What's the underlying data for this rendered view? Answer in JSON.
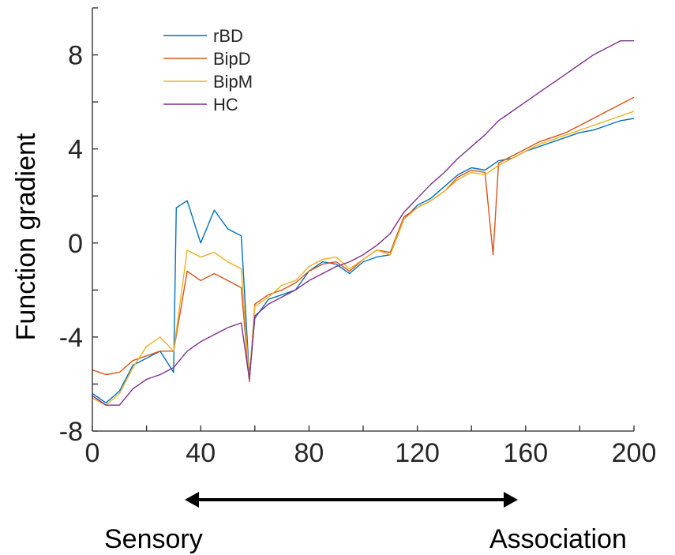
{
  "chart_data": {
    "type": "line",
    "xlabel": "",
    "ylabel": "Function gradient",
    "xlim": [
      0,
      200
    ],
    "ylim": [
      -8,
      10
    ],
    "xticks": [
      0,
      40,
      80,
      120,
      160,
      200
    ],
    "xtick_labels": [
      "0",
      "40",
      "80",
      "120",
      "160",
      "200"
    ],
    "yticks": [
      -8,
      -4,
      0,
      4,
      8
    ],
    "ytick_labels": [
      "-8",
      "-4",
      "0",
      "4",
      "8"
    ],
    "grid": false,
    "legend_position": "top-left",
    "annotation": {
      "arrow": "double-headed",
      "left_label": "Sensory",
      "right_label": "Association"
    },
    "series": [
      {
        "name": "rBD",
        "color": "#0072BD",
        "x": [
          0,
          5,
          10,
          15,
          20,
          25,
          30,
          31,
          35,
          40,
          45,
          50,
          55,
          58,
          60,
          65,
          70,
          75,
          80,
          85,
          90,
          95,
          100,
          105,
          110,
          115,
          120,
          125,
          130,
          135,
          140,
          145,
          150,
          155,
          160,
          165,
          170,
          175,
          180,
          185,
          190,
          195,
          200
        ],
        "y": [
          -6.4,
          -6.8,
          -6.3,
          -5.2,
          -4.9,
          -4.6,
          -5.5,
          1.5,
          1.8,
          0.0,
          1.4,
          0.6,
          0.3,
          -5.7,
          -3.2,
          -2.4,
          -2.2,
          -2.0,
          -1.2,
          -0.8,
          -0.9,
          -1.3,
          -0.8,
          -0.6,
          -0.5,
          1.0,
          1.6,
          1.9,
          2.4,
          2.9,
          3.2,
          3.1,
          3.5,
          3.6,
          3.9,
          4.1,
          4.3,
          4.5,
          4.7,
          4.8,
          5.0,
          5.2,
          5.3
        ]
      },
      {
        "name": "BipD",
        "color": "#D95319",
        "x": [
          0,
          5,
          10,
          15,
          20,
          25,
          30,
          35,
          40,
          45,
          50,
          55,
          58,
          60,
          65,
          70,
          75,
          80,
          85,
          90,
          95,
          100,
          105,
          110,
          115,
          120,
          125,
          130,
          135,
          140,
          145,
          148,
          150,
          155,
          160,
          165,
          170,
          175,
          180,
          185,
          190,
          195,
          200
        ],
        "y": [
          -5.4,
          -5.6,
          -5.5,
          -5.0,
          -4.8,
          -4.6,
          -4.6,
          -1.2,
          -1.6,
          -1.3,
          -1.6,
          -1.9,
          -5.9,
          -2.6,
          -2.2,
          -2.0,
          -1.7,
          -1.2,
          -0.9,
          -0.8,
          -1.2,
          -0.7,
          -0.3,
          -0.4,
          1.1,
          1.5,
          1.8,
          2.2,
          2.8,
          3.1,
          3.0,
          -0.5,
          3.4,
          3.7,
          4.0,
          4.3,
          4.5,
          4.7,
          5.0,
          5.3,
          5.6,
          5.9,
          6.2
        ]
      },
      {
        "name": "BipM",
        "color": "#EDB120",
        "x": [
          0,
          5,
          10,
          15,
          20,
          25,
          30,
          35,
          40,
          45,
          50,
          55,
          58,
          60,
          65,
          70,
          75,
          80,
          85,
          90,
          95,
          100,
          105,
          110,
          115,
          120,
          125,
          130,
          135,
          140,
          145,
          150,
          155,
          160,
          165,
          170,
          175,
          180,
          185,
          190,
          195,
          200
        ],
        "y": [
          -6.6,
          -6.9,
          -6.4,
          -5.3,
          -4.4,
          -4.0,
          -4.6,
          -0.3,
          -0.6,
          -0.4,
          -0.8,
          -1.1,
          -5.8,
          -2.7,
          -2.3,
          -1.8,
          -1.6,
          -1.0,
          -0.7,
          -0.6,
          -1.1,
          -0.7,
          -0.3,
          -0.5,
          1.0,
          1.5,
          1.8,
          2.2,
          2.7,
          3.0,
          2.9,
          3.3,
          3.6,
          3.9,
          4.2,
          4.4,
          4.6,
          4.8,
          5.0,
          5.2,
          5.4,
          5.6
        ]
      },
      {
        "name": "HC",
        "color": "#7E2F8E",
        "x": [
          0,
          5,
          10,
          15,
          20,
          25,
          30,
          35,
          40,
          45,
          50,
          55,
          58,
          60,
          65,
          70,
          75,
          80,
          85,
          90,
          95,
          100,
          105,
          110,
          115,
          120,
          125,
          130,
          135,
          140,
          145,
          150,
          155,
          160,
          165,
          170,
          175,
          180,
          185,
          190,
          195,
          200
        ],
        "y": [
          -6.5,
          -6.9,
          -6.9,
          -6.2,
          -5.8,
          -5.6,
          -5.3,
          -4.6,
          -4.2,
          -3.9,
          -3.6,
          -3.4,
          -5.8,
          -3.1,
          -2.6,
          -2.3,
          -2.0,
          -1.6,
          -1.3,
          -1.0,
          -0.8,
          -0.5,
          -0.1,
          0.4,
          1.3,
          1.9,
          2.5,
          3.0,
          3.6,
          4.1,
          4.6,
          5.2,
          5.6,
          6.0,
          6.4,
          6.8,
          7.2,
          7.6,
          8.0,
          8.3,
          8.6,
          8.6
        ]
      }
    ]
  }
}
